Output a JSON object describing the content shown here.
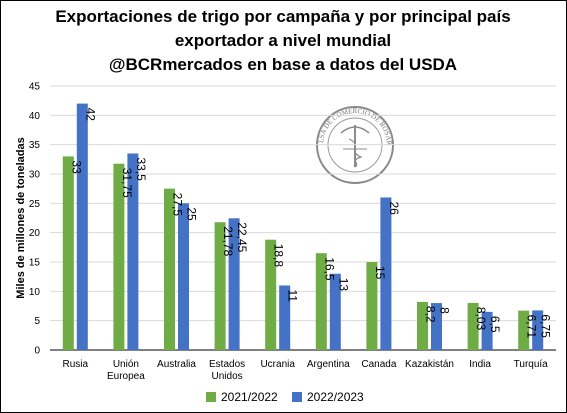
{
  "chart_data": {
    "type": "bar",
    "title_lines": [
      "Exportaciones de trigo por campaña y por principal país",
      "exportador a nivel mundial",
      "@BCRmercados en base a datos del USDA"
    ],
    "ylabel": "Miles de millones de toneladas",
    "xlabel": "",
    "ylim": [
      0,
      45
    ],
    "yticks": [
      0,
      5,
      10,
      15,
      20,
      25,
      30,
      35,
      40,
      45
    ],
    "grid": true,
    "legend_position": "bottom",
    "categories": [
      [
        "Rusia"
      ],
      [
        "Unión",
        "Europea"
      ],
      [
        "Australia"
      ],
      [
        "Estados",
        "Unidos"
      ],
      [
        "Ucrania"
      ],
      [
        "Argentina"
      ],
      [
        "Canada"
      ],
      [
        "Kazakistán"
      ],
      [
        "India"
      ],
      [
        "Turquía"
      ]
    ],
    "series": [
      {
        "name": "2021/2022",
        "color": "#6fac46",
        "values": [
          33,
          31.75,
          27.5,
          21.78,
          18.8,
          16.5,
          15,
          8.2,
          8.03,
          6.71
        ],
        "labels": [
          "33",
          "31,75",
          "27,5",
          "21,78",
          "18,8",
          "16,5",
          "15",
          "8,2",
          "8,03",
          "6,71"
        ]
      },
      {
        "name": "2022/2023",
        "color": "#4472c4",
        "values": [
          42,
          33.5,
          25,
          22.45,
          11,
          13,
          26,
          8,
          6.5,
          6.75
        ],
        "labels": [
          "42",
          "33,5",
          "25",
          "22,45",
          "11",
          "13",
          "26",
          "8",
          "6,5",
          "6,75"
        ]
      }
    ],
    "watermark_text": "BOLSA DE COMERCIO DE ROSARIO"
  }
}
